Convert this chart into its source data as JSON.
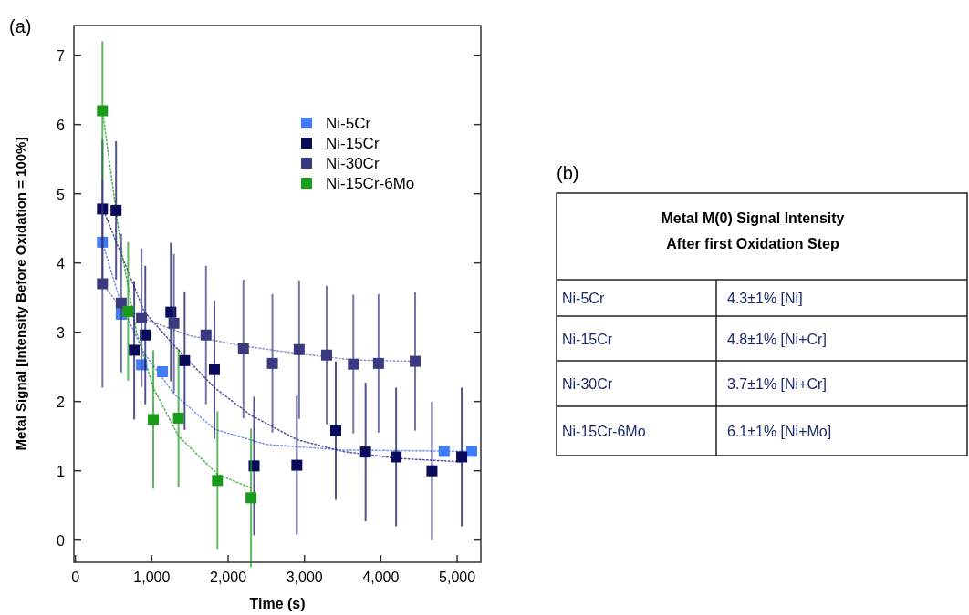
{
  "chart_data": [
    {
      "type": "scatter",
      "title": "(a)",
      "xlabel": "Time (s)",
      "ylabel": "Metal Signal [Intensity Before Oxidation = 100%]",
      "xlim": [
        -20,
        5310
      ],
      "ylim": [
        -0.32,
        7.43
      ],
      "xticks": [
        0,
        {
          "value": 1000,
          "label": "1,000"
        },
        {
          "value": 2000,
          "label": "2,000"
        },
        {
          "value": 3000,
          "label": "3,000"
        },
        {
          "value": 4000,
          "label": "4,000"
        },
        {
          "value": 5000,
          "label": "5,000"
        }
      ],
      "yticks": [
        0,
        1,
        2,
        3,
        4,
        5,
        6,
        7
      ],
      "marker": "square",
      "legend": "top right",
      "series": [
        {
          "name": "Ni-5Cr",
          "color": "#3f7cf5",
          "x": [
            354,
            600,
            866,
            1140,
            4830,
            5190
          ],
          "values": [
            4.3,
            3.26,
            2.53,
            2.43,
            1.28,
            1.28
          ]
        },
        {
          "name": "Ni-15Cr",
          "color": "#0a0a5a",
          "x": [
            354,
            532,
            770,
            915,
            1250,
            1430,
            1820,
            2340,
            2900,
            3410,
            3800,
            4200,
            4670,
            5060
          ],
          "values": [
            4.78,
            4.76,
            2.74,
            2.96,
            3.29,
            2.59,
            2.46,
            1.07,
            1.08,
            1.58,
            1.27,
            1.2,
            1.0,
            1.2
          ],
          "errors": [
            1,
            1,
            1,
            1,
            1,
            1,
            1,
            1,
            1,
            1,
            1,
            1,
            1,
            1
          ]
        },
        {
          "name": "Ni-30Cr",
          "color": "#3a3a80",
          "x": [
            354,
            600,
            866,
            1290,
            1710,
            2200,
            2580,
            2930,
            3290,
            3640,
            3970,
            4450
          ],
          "values": [
            3.7,
            3.42,
            3.21,
            3.13,
            2.96,
            2.76,
            2.55,
            2.75,
            2.67,
            2.54,
            2.55,
            2.58
          ],
          "errors": [
            1.5,
            1,
            1,
            1,
            1,
            1,
            1,
            1,
            1,
            1,
            1,
            1
          ]
        },
        {
          "name": "Ni-15Cr-6Mo",
          "color": "#1a9a1a",
          "x": [
            354,
            690,
            1020,
            1350,
            1860,
            2300
          ],
          "values": [
            6.2,
            3.3,
            1.74,
            1.76,
            0.86,
            0.61
          ],
          "errors": [
            1,
            1,
            1,
            1,
            1,
            1
          ]
        },
        {
          "type": "line",
          "line_style": "dotted",
          "marker": "none",
          "color": "#6c8ff0",
          "x": [
            354,
            600,
            900,
            1300,
            1820,
            2500,
            3500,
            5200
          ],
          "values": [
            4.3,
            3.4,
            2.7,
            2.1,
            1.6,
            1.38,
            1.3,
            1.28
          ]
        },
        {
          "type": "line",
          "line_style": "dotted",
          "marker": "none",
          "color": "#5050a0",
          "x": [
            354,
            900,
            1300,
            1820,
            2300,
            2900,
            3500,
            4200,
            5060
          ],
          "values": [
            4.8,
            3.3,
            2.8,
            2.2,
            1.8,
            1.45,
            1.28,
            1.18,
            1.13
          ]
        },
        {
          "type": "line",
          "line_style": "dotted",
          "marker": "none",
          "color": "#9090c0",
          "x": [
            354,
            600,
            1000,
            1500,
            2200,
            3000,
            3640,
            4450
          ],
          "values": [
            3.7,
            3.35,
            3.15,
            2.95,
            2.8,
            2.68,
            2.6,
            2.58
          ]
        },
        {
          "type": "line",
          "line_style": "dotted",
          "marker": "none",
          "color": "#4caf50",
          "x": [
            354,
            600,
            800,
            1020,
            1350,
            1860,
            2300
          ],
          "values": [
            6.2,
            4.2,
            3.0,
            2.2,
            1.5,
            0.95,
            0.75
          ]
        }
      ]
    },
    {
      "type": "other",
      "title": "(b)",
      "subtitle": "Metal M(0) Signal Intensity\nAfter first Oxidation Step",
      "categories": [
        "Ni-5Cr",
        "Ni-15Cr",
        "Ni-30Cr",
        "Ni-15Cr-6Mo"
      ],
      "value_labels": [
        "4.3±1% [Ni]",
        "4.8±1% [Ni+Cr]",
        "3.7±1% [Ni+Cr]",
        "6.1±1% [Ni+Mo]"
      ]
    }
  ]
}
